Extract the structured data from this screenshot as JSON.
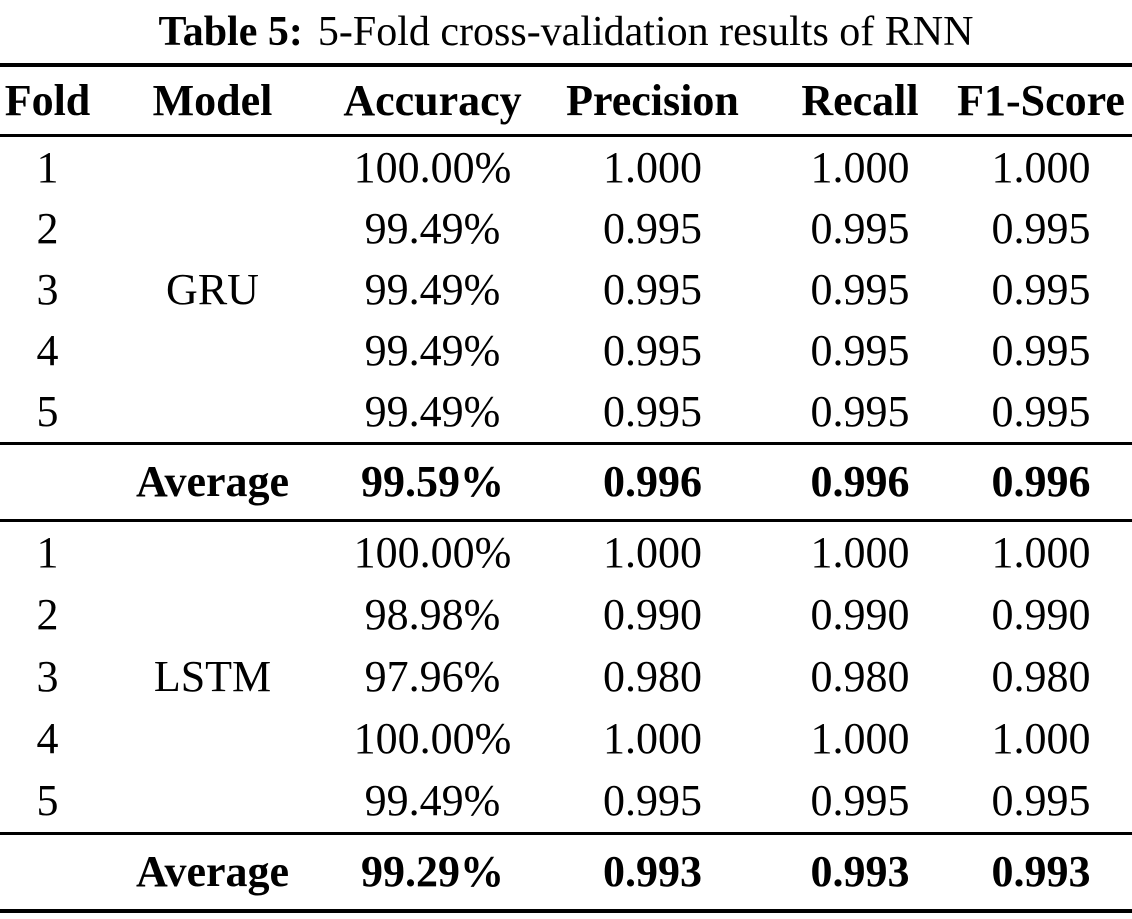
{
  "colors": {
    "background": "#ffffff",
    "text": "#000000",
    "rule": "#000000"
  },
  "caption": {
    "label": "Table 5:",
    "text": "5-Fold cross-validation results of RNN"
  },
  "table": {
    "columns": [
      "Fold",
      "Model",
      "Accuracy",
      "Precision",
      "Recall",
      "F1-Score"
    ],
    "groups": [
      {
        "model": "GRU",
        "rows": [
          {
            "fold": "1",
            "accuracy": "100.00%",
            "precision": "1.000",
            "recall": "1.000",
            "f1": "1.000"
          },
          {
            "fold": "2",
            "accuracy": "99.49%",
            "precision": "0.995",
            "recall": "0.995",
            "f1": "0.995"
          },
          {
            "fold": "3",
            "accuracy": "99.49%",
            "precision": "0.995",
            "recall": "0.995",
            "f1": "0.995"
          },
          {
            "fold": "4",
            "accuracy": "99.49%",
            "precision": "0.995",
            "recall": "0.995",
            "f1": "0.995"
          },
          {
            "fold": "5",
            "accuracy": "99.49%",
            "precision": "0.995",
            "recall": "0.995",
            "f1": "0.995"
          }
        ],
        "average": {
          "label": "Average",
          "accuracy": "99.59%",
          "precision": "0.996",
          "recall": "0.996",
          "f1": "0.996"
        }
      },
      {
        "model": "LSTM",
        "rows": [
          {
            "fold": "1",
            "accuracy": "100.00%",
            "precision": "1.000",
            "recall": "1.000",
            "f1": "1.000"
          },
          {
            "fold": "2",
            "accuracy": "98.98%",
            "precision": "0.990",
            "recall": "0.990",
            "f1": "0.990"
          },
          {
            "fold": "3",
            "accuracy": "97.96%",
            "precision": "0.980",
            "recall": "0.980",
            "f1": "0.980"
          },
          {
            "fold": "4",
            "accuracy": "100.00%",
            "precision": "1.000",
            "recall": "1.000",
            "f1": "1.000"
          },
          {
            "fold": "5",
            "accuracy": "99.49%",
            "precision": "0.995",
            "recall": "0.995",
            "f1": "0.995"
          }
        ],
        "average": {
          "label": "Average",
          "accuracy": "99.29%",
          "precision": "0.993",
          "recall": "0.993",
          "f1": "0.993"
        }
      }
    ]
  }
}
